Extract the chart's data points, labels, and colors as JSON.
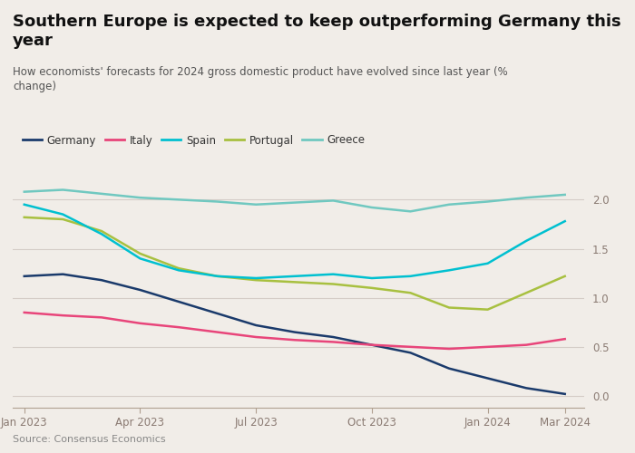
{
  "title": "Southern Europe is expected to keep outperforming Germany this year",
  "subtitle": "How economists' forecasts for 2024 gross domestic product have evolved since last year (%\nchange)",
  "source": "Source: Consensus Economics",
  "x_labels": [
    "Jan 2023",
    "Apr 2023",
    "Jul 2023",
    "Oct 2023",
    "Jan 2024",
    "Mar 2024"
  ],
  "x_ticks_pos": [
    0,
    3,
    6,
    9,
    12,
    14
  ],
  "y_ticks": [
    0.0,
    0.5,
    1.0,
    1.5,
    2.0
  ],
  "background_color": "#f1ede8",
  "grid_color": "#d4ccc6",
  "series": {
    "Germany": {
      "color": "#1a3a6b",
      "data_x": [
        0,
        1,
        2,
        3,
        4,
        5,
        6,
        7,
        8,
        9,
        10,
        11,
        12,
        13,
        14
      ],
      "data_y": [
        1.22,
        1.24,
        1.18,
        1.08,
        0.96,
        0.84,
        0.72,
        0.65,
        0.6,
        0.52,
        0.44,
        0.28,
        0.18,
        0.08,
        0.02
      ]
    },
    "Italy": {
      "color": "#e8457a",
      "data_x": [
        0,
        1,
        2,
        3,
        4,
        5,
        6,
        7,
        8,
        9,
        10,
        11,
        12,
        13,
        14
      ],
      "data_y": [
        0.85,
        0.82,
        0.8,
        0.74,
        0.7,
        0.65,
        0.6,
        0.57,
        0.55,
        0.52,
        0.5,
        0.48,
        0.5,
        0.52,
        0.58
      ]
    },
    "Spain": {
      "color": "#00c0d0",
      "data_x": [
        0,
        1,
        2,
        3,
        4,
        5,
        6,
        7,
        8,
        9,
        10,
        11,
        12,
        13,
        14
      ],
      "data_y": [
        1.95,
        1.85,
        1.65,
        1.4,
        1.28,
        1.22,
        1.2,
        1.22,
        1.24,
        1.2,
        1.22,
        1.28,
        1.35,
        1.58,
        1.78
      ]
    },
    "Portugal": {
      "color": "#a8c040",
      "data_x": [
        0,
        1,
        2,
        3,
        4,
        5,
        6,
        7,
        8,
        9,
        10,
        11,
        12,
        13,
        14
      ],
      "data_y": [
        1.82,
        1.8,
        1.68,
        1.45,
        1.3,
        1.22,
        1.18,
        1.16,
        1.14,
        1.1,
        1.05,
        0.9,
        0.88,
        1.05,
        1.22
      ]
    },
    "Greece": {
      "color": "#70c8c0",
      "data_x": [
        0,
        1,
        2,
        3,
        4,
        5,
        6,
        7,
        8,
        9,
        10,
        11,
        12,
        13,
        14
      ],
      "data_y": [
        2.08,
        2.1,
        2.06,
        2.02,
        2.0,
        1.98,
        1.95,
        1.97,
        1.99,
        1.92,
        1.88,
        1.95,
        1.98,
        2.02,
        2.05
      ]
    }
  },
  "title_fontsize": 13,
  "subtitle_fontsize": 8.5,
  "axis_label_fontsize": 8.5,
  "source_fontsize": 8,
  "legend_fontsize": 8.5
}
